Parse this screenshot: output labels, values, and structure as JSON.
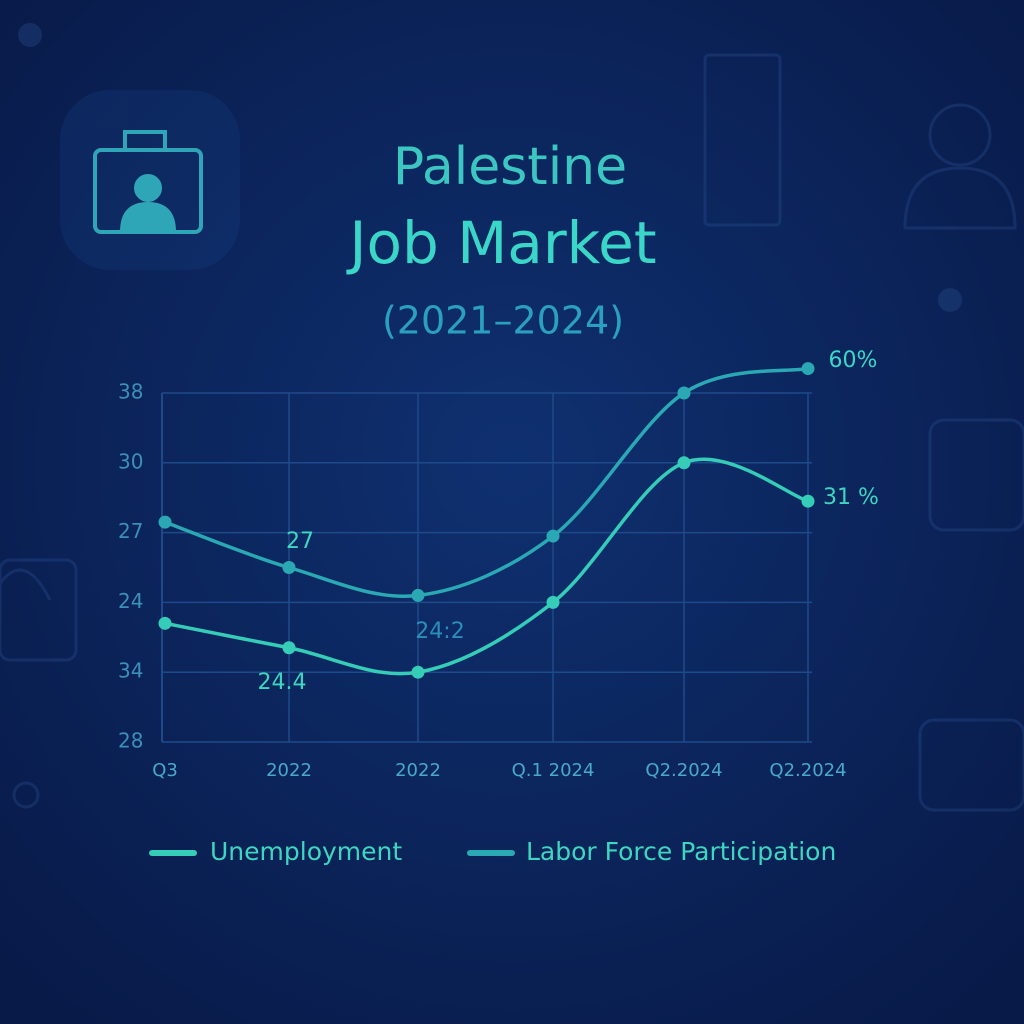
{
  "chart_data": {
    "type": "line",
    "title_lines": [
      "Palestine",
      "Job Market"
    ],
    "subtitle": "(2021–2024)",
    "categories": [
      "Q3",
      "2022",
      "2022",
      "Q.1 2024",
      "Q2.2024",
      "Q2.2024"
    ],
    "series": [
      {
        "name": "Labor Force Participation",
        "color": "#2aa9b4",
        "values": [
          34.3,
          33.0,
          32.2,
          33.9,
          38.0,
          38.7
        ]
      },
      {
        "name": "Unemployment",
        "color": "#35cdb8",
        "values": [
          31.4,
          30.7,
          30.0,
          32.0,
          36.0,
          34.9
        ]
      }
    ],
    "legend_order": [
      1,
      0
    ],
    "ylim": [
      28,
      38
    ],
    "yticks": [
      28,
      {
        "value": 30,
        "label": "34"
      },
      {
        "value": 32,
        "label": "24"
      },
      {
        "value": 34,
        "label": "27"
      },
      {
        "value": 36,
        "label": "30"
      },
      38
    ],
    "grid": true,
    "annotations": [
      "27",
      "24.4",
      "24:2",
      "60%",
      "31 %"
    ]
  }
}
